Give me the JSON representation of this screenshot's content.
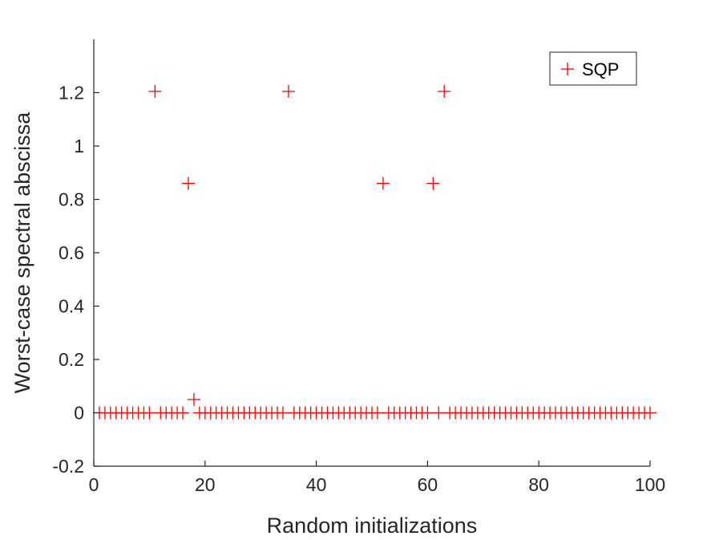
{
  "chart_data": {
    "type": "scatter",
    "title": "",
    "xlabel": "Random initializations",
    "ylabel": "Worst-case spectral abscissa",
    "xlim": [
      0,
      100
    ],
    "ylim": [
      -0.2,
      1.4
    ],
    "xticks": [
      "0",
      "20",
      "40",
      "60",
      "80",
      "100"
    ],
    "yticks": [
      "-0.2",
      "0",
      "0.2",
      "0.4",
      "0.6",
      "0.8",
      "1",
      "1.2"
    ],
    "xtick_values": [
      0,
      20,
      40,
      60,
      80,
      100
    ],
    "ytick_values": [
      -0.2,
      0,
      0.2,
      0.4,
      0.6,
      0.8,
      1,
      1.2
    ],
    "grid": false,
    "legend_position": "top-right",
    "marker": "+",
    "series": [
      {
        "name": "SQP",
        "color": "#ff0000",
        "x": [
          1,
          2,
          3,
          4,
          5,
          6,
          7,
          8,
          9,
          10,
          11,
          12,
          13,
          14,
          15,
          16,
          17,
          18,
          19,
          20,
          21,
          22,
          23,
          24,
          25,
          26,
          27,
          28,
          29,
          30,
          31,
          32,
          33,
          34,
          35,
          36,
          37,
          38,
          39,
          40,
          41,
          42,
          43,
          44,
          45,
          46,
          47,
          48,
          49,
          50,
          51,
          52,
          53,
          54,
          55,
          56,
          57,
          58,
          59,
          60,
          61,
          62,
          63,
          64,
          65,
          66,
          67,
          68,
          69,
          70,
          71,
          72,
          73,
          74,
          75,
          76,
          77,
          78,
          79,
          80,
          81,
          82,
          83,
          84,
          85,
          86,
          87,
          88,
          89,
          90,
          91,
          92,
          93,
          94,
          95,
          96,
          97,
          98,
          99,
          100
        ],
        "y": [
          0,
          0,
          0,
          0,
          0,
          0,
          0,
          0,
          0,
          0,
          1.205,
          0,
          0,
          0,
          0,
          0,
          0.86,
          0.05,
          0,
          0,
          0,
          0,
          0,
          0,
          0,
          0,
          0,
          0,
          0,
          0,
          0,
          0,
          0,
          0,
          1.205,
          0,
          0,
          0,
          0,
          0,
          0,
          0,
          0,
          0,
          0,
          0,
          0,
          0,
          0,
          0,
          0,
          0.86,
          0,
          0,
          0,
          0,
          0,
          0,
          0,
          0,
          0.86,
          0,
          1.205,
          0,
          0,
          0,
          0,
          0,
          0,
          0,
          0,
          0,
          0,
          0,
          0,
          0,
          0,
          0,
          0,
          0,
          0,
          0,
          0,
          0,
          0,
          0,
          0,
          0,
          0,
          0,
          0,
          0,
          0,
          0,
          0,
          0,
          0,
          0,
          0,
          0
        ]
      }
    ]
  }
}
